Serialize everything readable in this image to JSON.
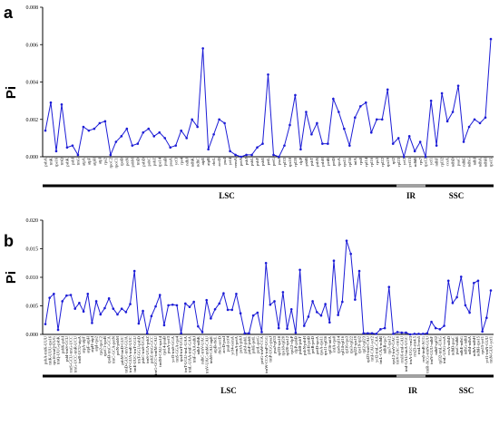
{
  "chart_data": [
    {
      "panel": "a",
      "type": "line",
      "ylabel": "Pi",
      "ylim": [
        0,
        0.008
      ],
      "yticks": [
        "0.000",
        "0.002",
        "0.004",
        "0.006",
        "0.008"
      ],
      "color": "#1c1cd6",
      "values": [
        0.0014,
        0.0029,
        0.0003,
        0.0028,
        0.0005,
        0.0006,
        0.0001,
        0.0016,
        0.0014,
        0.0015,
        0.0018,
        0.0019,
        0.0001,
        0.0008,
        0.0011,
        0.0015,
        0.0006,
        0.0007,
        0.0013,
        0.0015,
        0.0011,
        0.0013,
        0.001,
        0.0005,
        0.0006,
        0.0014,
        0.001,
        0.002,
        0.0016,
        0.0058,
        0.0004,
        0.0012,
        0.002,
        0.0018,
        0.0003,
        0.0001,
        0.0,
        0.0001,
        0.0001,
        0.0005,
        0.0007,
        0.0044,
        0.0001,
        0.0,
        0.0006,
        0.0017,
        0.0033,
        0.0004,
        0.0024,
        0.0012,
        0.0018,
        0.0007,
        0.0007,
        0.0031,
        0.0024,
        0.0015,
        0.0006,
        0.0021,
        0.0027,
        0.0029,
        0.0013,
        0.002,
        0.002,
        0.0036,
        0.0007,
        0.001,
        0.0,
        0.0011,
        0.0003,
        0.0008,
        0.0,
        0.003,
        0.0006,
        0.0034,
        0.0019,
        0.0024,
        0.0038,
        0.0008,
        0.0016,
        0.002,
        0.0018,
        0.0021,
        0.0063
      ],
      "regions": [
        "LSC",
        "IR",
        "SSC"
      ],
      "categories": [
        "psbA",
        "trnK",
        "rps16",
        "trnQ",
        "psbK",
        "psbI",
        "trnG",
        "atpA",
        "atpF",
        "atpH",
        "atpI",
        "rps2",
        "rpoC2",
        "rpoC1",
        "rpoB",
        "petN",
        "psbM",
        "trnD",
        "psbD",
        "psbC",
        "psbZ",
        "rps14",
        "psaB",
        "psaA",
        "ycf3",
        "rps4",
        "ndhJ",
        "ndhK",
        "ndhC",
        "atpE",
        "atpB",
        "rbcL",
        "accD",
        "psaI",
        "ycf4",
        "cemA",
        "petA",
        "psbJ",
        "psbL",
        "psbF",
        "psbE",
        "petL",
        "petG",
        "psaJ",
        "rpl33",
        "rps18",
        "rpl20",
        "clpP",
        "psbB",
        "psbT",
        "psbN",
        "psbH",
        "petB",
        "petD",
        "rpoA",
        "rps11",
        "rpl36",
        "infA",
        "rps8",
        "rpl14",
        "rpl16",
        "rps3",
        "rpl22",
        "rps19",
        "rpl2",
        "rpl23",
        "ycf2",
        "ycf15",
        "ndhB",
        "rps7",
        "rps12",
        "ycf1",
        "ndhF",
        "rpl32",
        "ccsA",
        "ndhD",
        "psaC",
        "ndhE",
        "ndhG",
        "ndhI",
        "ndhA",
        "ndhH",
        "rps15"
      ]
    },
    {
      "panel": "b",
      "type": "line",
      "ylabel": "Pi",
      "ylim": [
        0,
        0.02
      ],
      "yticks": [
        "0.000",
        "0.005",
        "0.010",
        "0.015",
        "0.020"
      ],
      "color": "#1c1cd6",
      "values": [
        0.0018,
        0.0064,
        0.0071,
        0.0008,
        0.0058,
        0.0068,
        0.0069,
        0.0045,
        0.0055,
        0.004,
        0.0071,
        0.002,
        0.0058,
        0.0035,
        0.0046,
        0.0063,
        0.0045,
        0.0035,
        0.0045,
        0.0039,
        0.0053,
        0.0111,
        0.0019,
        0.0041,
        0.0002,
        0.0032,
        0.0049,
        0.0069,
        0.0016,
        0.0051,
        0.0052,
        0.0051,
        0.0002,
        0.0054,
        0.0048,
        0.0057,
        0.0014,
        0.0004,
        0.006,
        0.0028,
        0.0044,
        0.0054,
        0.0072,
        0.0043,
        0.0043,
        0.0071,
        0.0037,
        0.0002,
        0.0002,
        0.0033,
        0.0038,
        0.0004,
        0.0125,
        0.0052,
        0.0058,
        0.0011,
        0.0074,
        0.001,
        0.0044,
        0.0003,
        0.0113,
        0.0015,
        0.0031,
        0.0058,
        0.0039,
        0.0033,
        0.0053,
        0.0021,
        0.0129,
        0.0034,
        0.0057,
        0.0164,
        0.0141,
        0.0061,
        0.0111,
        0.0002,
        0.0002,
        0.0002,
        0.0001,
        0.0009,
        0.0011,
        0.0083,
        0.0001,
        0.0004,
        0.0003,
        0.0003,
        0.0,
        0.0001,
        0.0001,
        0.0001,
        0.0002,
        0.0022,
        0.0011,
        0.0009,
        0.0015,
        0.0094,
        0.0055,
        0.0065,
        0.0101,
        0.0051,
        0.0038,
        0.009,
        0.0094,
        0.0005,
        0.0029,
        0.0077
      ],
      "regions": [
        "LSC",
        "IR",
        "SSC"
      ],
      "categories": [
        "psbA-trnK-UUU",
        "trnK-UUU-rps16",
        "rps16-trnQ-UUG",
        "trnQ-UUG-psbK",
        "psbK-psbI",
        "psbI-trnS-GCU",
        "trnS-GCU-trnG-UCC",
        "trnG-UCC-trnR-UCU",
        "trnR-UCU-atpA",
        "atpA-atpF",
        "atpF-atpH",
        "atpH-atpI",
        "atpI-rps2",
        "rps2-rpoC2",
        "rpoC1-rpoB",
        "rpoB-trnC-GCA",
        "trnC-GCA-petN",
        "petN-psbM",
        "psbM-trnD-GUC",
        "trnD-GUC-trnY-GUA",
        "trnY-GUA-trnE-UUC",
        "trnE-UUC-trnT-GGU",
        "trnT-GGU-psbD",
        "psbC-trnS-UGA",
        "trnS-UGA-psbZ",
        "psbZ-trnG-GCC",
        "trnG-GCC-trnfM-CAU",
        "trnfM-CAU-rps14",
        "rps14-psaB",
        "psaA-ycf3",
        "ycf3-trnS-GGA",
        "trnS-GGA-rps4",
        "rps4-trnT-UGU",
        "trnT-UGU-trnL-UAA",
        "trnL-UAA-trnF-GAA",
        "trnF-GAA-ndhJ",
        "ndhJ-ndhK",
        "ndhC-trnV-UAC",
        "trnV-UAC-trnM-CAU",
        "trnM-CAU-atpE",
        "atpB-rbcL",
        "rbcL-accD",
        "accD-psaI",
        "psaI-ycf4",
        "ycf4-cemA",
        "cemA-petA",
        "petA-psbJ",
        "psbJ-psbL",
        "psbF-psbE",
        "psbE-petL",
        "petL-petG",
        "petG-trnW-CCA",
        "trnW-CCA-trnP-UGG",
        "trnP-UGG-psaJ",
        "psaJ-rpl33",
        "rpl33-rps18",
        "rps18-rpl20",
        "rpl20-rps12",
        "rps12-clpP",
        "clpP-psbB",
        "psbB-psbT",
        "psbN-psbH",
        "psbH-petB",
        "petB-petD",
        "petD-rpoA",
        "rpoA-rps11",
        "rps11-rpl36",
        "rpl36-infA",
        "infA-rps8",
        "rps8-rpl14",
        "rpl14-rpl16",
        "rpl16-rps3",
        "rps3-rpl22",
        "rpl22-rps19",
        "rps19-rpl2",
        "rpl2-rpl23",
        "rpl23-trnI-CAU",
        "trnI-CAU-ycf2",
        "ycf2-trnL-CAA",
        "trnL-CAA-ndhB",
        "ndhB-rps7",
        "rps7-rps12",
        "rps12-trnV-GAC",
        "trnV-GAC-rrn16",
        "rrn16-trnI-GAU",
        "trnI-GAU-trnA-UGC",
        "trnA-UGC-rrn23",
        "rrn23-rrn4.5",
        "rrn4.5-rrn5",
        "rrn5-trnR-ACG",
        "trnR-ACG-trnN-GUU",
        "trnN-GUU-ndhF",
        "ndhF-rpl32",
        "rpl32-trnL-UAG",
        "trnL-UAG-ccsA",
        "ccsA-ndhD",
        "ndhD-psaC",
        "psaC-ndhE",
        "ndhE-ndhG",
        "ndhG-ndhI",
        "ndhI-ndhA",
        "ndhA-ndhH",
        "ndhH-rps15",
        "rps15-ycf1",
        "ycf1-trnN-GUU",
        "trnN-GUU-ycf1"
      ]
    }
  ]
}
